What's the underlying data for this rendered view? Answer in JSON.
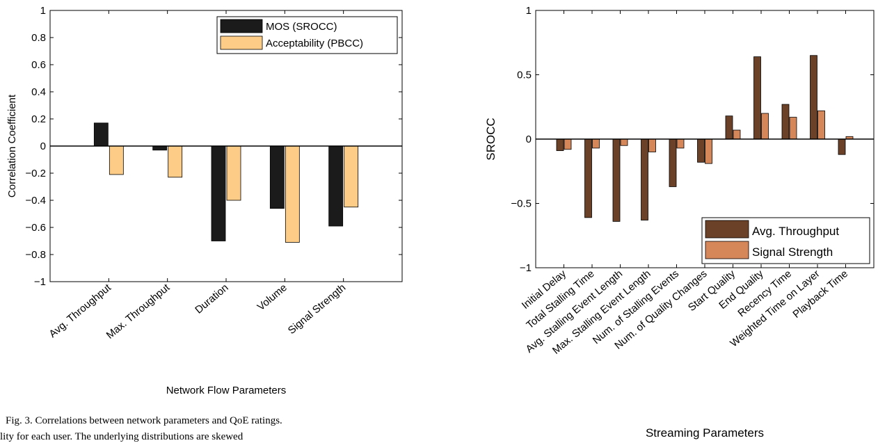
{
  "chart_data": [
    {
      "type": "bar",
      "xlabel": "Network Flow Parameters",
      "ylabel": "Correlation Coefficient",
      "ylim": [
        -1,
        1
      ],
      "yticks": [
        -1,
        -0.8,
        -0.6,
        -0.4,
        -0.2,
        0,
        0.2,
        0.4,
        0.6,
        0.8,
        1
      ],
      "ytick_labels": [
        "−1",
        "−0.8",
        "−0.6",
        "−0.4",
        "−0.2",
        "0",
        "0.2",
        "0.4",
        "0.6",
        "0.8",
        "1"
      ],
      "categories": [
        "Avg. Throughput",
        "Max. Throughput",
        "Duration",
        "Volume",
        "Signal Strength"
      ],
      "series": [
        {
          "name": "MOS (SROCC)",
          "color": "#1b1b1b",
          "values": [
            0.17,
            -0.03,
            -0.7,
            -0.46,
            -0.59
          ]
        },
        {
          "name": "Acceptability (PBCC)",
          "color": "#fdcd88",
          "values": [
            -0.21,
            -0.23,
            -0.4,
            -0.71,
            -0.45
          ]
        }
      ],
      "legend": "top-right",
      "grid": false
    },
    {
      "type": "bar",
      "xlabel": "Streaming Parameters",
      "ylabel": "SROCC",
      "ylim": [
        -1,
        1
      ],
      "yticks": [
        -1,
        -0.5,
        0,
        0.5,
        1
      ],
      "ytick_labels": [
        "−1",
        "−0.5",
        "0",
        "0.5",
        "1"
      ],
      "categories": [
        "Initial Delay",
        "Total Stalling Time",
        "Avg. Stalling Event Length",
        "Max. Stalling Event Length",
        "Num. of Stalling Events",
        "Num. of Quality Changes",
        "Start Quality",
        "End Quality",
        "Recency Time",
        "Weighted Time on Layer",
        "Playback Time"
      ],
      "series": [
        {
          "name": "Avg. Throughput",
          "color": "#6b4128",
          "values": [
            -0.09,
            -0.61,
            -0.64,
            -0.63,
            -0.37,
            -0.18,
            0.18,
            0.64,
            0.27,
            0.65,
            -0.12
          ]
        },
        {
          "name": "Signal Strength",
          "color": "#d6875a",
          "values": [
            -0.08,
            -0.07,
            -0.05,
            -0.1,
            -0.07,
            -0.19,
            0.07,
            0.2,
            0.17,
            0.22,
            0.02
          ]
        }
      ],
      "legend": "bottom-right",
      "grid": false
    }
  ],
  "caption": "Fig. 3.  Correlations between network parameters and QoE ratings.",
  "cutoff_text": "lity for each user.  The underlying distributions are skewed"
}
